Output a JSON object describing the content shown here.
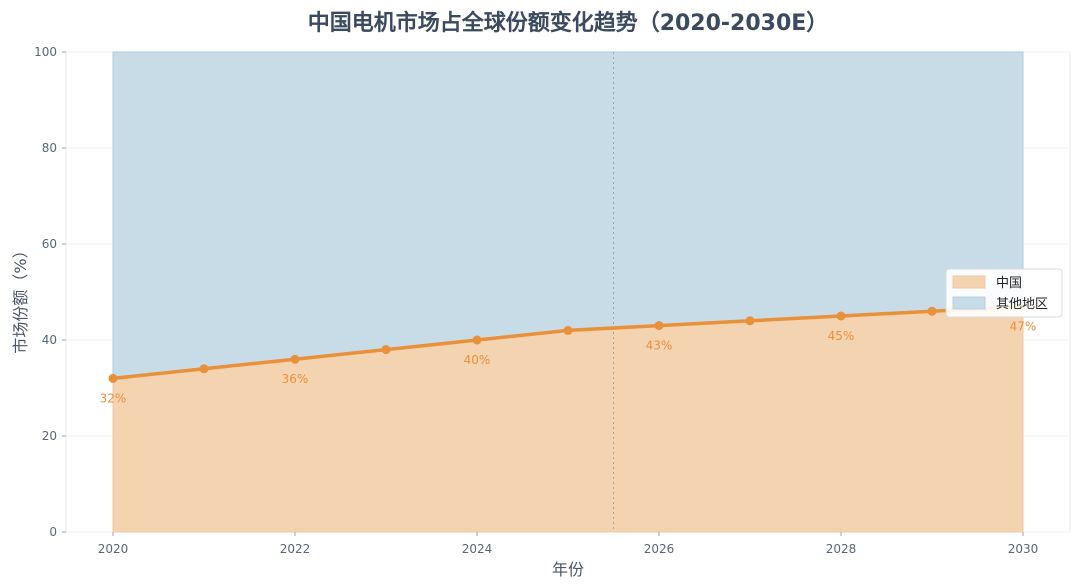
{
  "chart_data": {
    "type": "area",
    "title": "中国电机市场占全球份额变化趋势（2020-2030E）",
    "xlabel": "年份",
    "ylabel": "市场份额（%）",
    "xlim": [
      2020,
      2030
    ],
    "ylim": [
      0,
      100
    ],
    "x_ticks": [
      "2020",
      "2022",
      "2024",
      "2026",
      "2028",
      "2030"
    ],
    "y_ticks": [
      "0",
      "20",
      "40",
      "60",
      "80",
      "100"
    ],
    "x": [
      2020,
      2021,
      2022,
      2023,
      2024,
      2025,
      2026,
      2027,
      2028,
      2029,
      2030
    ],
    "series": [
      {
        "name": "中国",
        "values": [
          32,
          34,
          36,
          38,
          40,
          42,
          43,
          44,
          45,
          46,
          47
        ],
        "color": "#e8913a",
        "fill": "#f3d3b0"
      },
      {
        "name": "其他地区",
        "values": [
          68,
          66,
          64,
          62,
          60,
          58,
          57,
          56,
          55,
          54,
          53
        ],
        "color": "#b9d0df",
        "fill": "#c8dce8"
      }
    ],
    "data_labels": [
      {
        "x": 2020,
        "text": "32%"
      },
      {
        "x": 2022,
        "text": "36%"
      },
      {
        "x": 2024,
        "text": "40%"
      },
      {
        "x": 2026,
        "text": "43%"
      },
      {
        "x": 2028,
        "text": "45%"
      },
      {
        "x": 2030,
        "text": "47%"
      }
    ],
    "divider_x": 2025.5,
    "legend_position": "center-right",
    "grid": true
  }
}
